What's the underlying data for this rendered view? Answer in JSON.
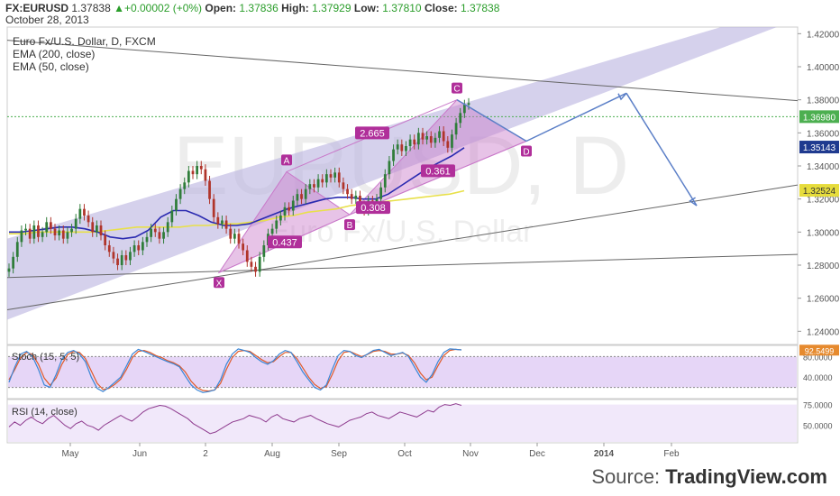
{
  "header": {
    "symbol": "FX:EURUSD",
    "last": "1.37838",
    "change_arrow": "▲",
    "change": "+0.00002 (+0%)",
    "open_label": "Open:",
    "open": "1.37836",
    "high_label": "High:",
    "high": "1.37929",
    "low_label": "Low:",
    "low": "1.37810",
    "close_label": "Close:",
    "close": "1.37838",
    "date": "October 28, 2013"
  },
  "legend": {
    "title": "Euro Fx/U.S. Dollar, D, FXCM",
    "ema200": "EMA (200, close)",
    "ema50": "EMA (50, close)"
  },
  "watermark": {
    "big": "EURUSD, D",
    "small": "Euro Fx/U.S. Dollar"
  },
  "stoch_label": "Stoch (15, 5, 5)",
  "rsi_label": "RSI (14, close)",
  "source": {
    "prefix": "Source: ",
    "brand": "TradingView.com"
  },
  "colors": {
    "candle_up": "#2f7d3a",
    "candle_down": "#b0352b",
    "ema200": "#e8e04a",
    "ema50": "#2a2ab0",
    "channel": "#b9b2e0",
    "pattern": "#c979c9",
    "pattern_label": "#b02f9a",
    "projection": "#5b7fc7",
    "stoch_k": "#3b86d6",
    "stoch_d": "#e05a2a",
    "rsi": "#8e3b8e",
    "price_tag_green": "#4caf50",
    "price_tag_blue": "#1f3a8f",
    "price_tag_orange": "#e68a2e",
    "price_tag_yellow": "#e6dc3c"
  },
  "chart_data": {
    "type": "candlestick",
    "x_labels": [
      "May",
      "Jun",
      "2",
      "Aug",
      "Sep",
      "Oct",
      "Nov",
      "Dec",
      "2014",
      "Feb"
    ],
    "y_ticks": [
      "1.42000",
      "1.40000",
      "1.38000",
      "1.36000",
      "1.34000",
      "1.32000",
      "1.30000",
      "1.28000",
      "1.26000",
      "1.24000"
    ],
    "ylim": [
      1.232,
      1.424
    ],
    "price_tags": [
      {
        "label": "1.36980",
        "value": 1.3698,
        "color": "green"
      },
      {
        "label": "1.35143",
        "value": 1.35143,
        "color": "blue"
      },
      {
        "label": "1.32524",
        "value": 1.32524,
        "color": "yellow"
      }
    ],
    "pattern_points": [
      {
        "name": "X",
        "value": 1.2755
      },
      {
        "name": "A",
        "value": 1.3365
      },
      {
        "name": "B",
        "value": 1.3105
      },
      {
        "name": "C",
        "value": 1.38
      },
      {
        "name": "D",
        "value": 1.355
      }
    ],
    "ratios": [
      "0.437",
      "0.308",
      "2.665",
      "0.361"
    ],
    "closes": [
      1.278,
      1.285,
      1.294,
      1.301,
      1.302,
      1.296,
      1.304,
      1.297,
      1.3,
      1.306,
      1.302,
      1.298,
      1.301,
      1.296,
      1.3,
      1.302,
      1.308,
      1.314,
      1.31,
      1.306,
      1.3,
      1.304,
      1.298,
      1.292,
      1.288,
      1.284,
      1.28,
      1.286,
      1.283,
      1.288,
      1.292,
      1.289,
      1.294,
      1.297,
      1.302,
      1.3,
      1.296,
      1.3,
      1.306,
      1.313,
      1.32,
      1.326,
      1.33,
      1.337,
      1.335,
      1.34,
      1.338,
      1.331,
      1.32,
      1.309,
      1.305,
      1.307,
      1.302,
      1.296,
      1.299,
      1.293,
      1.289,
      1.282,
      1.279,
      1.276,
      1.285,
      1.292,
      1.299,
      1.302,
      1.307,
      1.31,
      1.315,
      1.313,
      1.319,
      1.323,
      1.32,
      1.326,
      1.329,
      1.327,
      1.332,
      1.33,
      1.335,
      1.333,
      1.336,
      1.33,
      1.326,
      1.323,
      1.32,
      1.322,
      1.316,
      1.313,
      1.319,
      1.316,
      1.32,
      1.327,
      1.335,
      1.343,
      1.35,
      1.353,
      1.349,
      1.352,
      1.356,
      1.353,
      1.36,
      1.356,
      1.358,
      1.354,
      1.357,
      1.361,
      1.355,
      1.351,
      1.359,
      1.366,
      1.372,
      1.377,
      1.378
    ],
    "ema50_points": [
      1.3,
      1.3,
      1.301,
      1.302,
      1.303,
      1.303,
      1.302,
      1.3,
      1.297,
      1.296,
      1.297,
      1.301,
      1.309,
      1.313,
      1.313,
      1.31,
      1.306,
      1.304,
      1.304,
      1.305,
      1.308,
      1.311,
      1.314,
      1.316,
      1.318,
      1.32,
      1.321,
      1.321,
      1.32,
      1.32,
      1.323,
      1.328,
      1.333,
      1.338,
      1.342,
      1.346,
      1.351
    ],
    "ema200_points": [
      1.299,
      1.299,
      1.3,
      1.3,
      1.3,
      1.3,
      1.3,
      1.301,
      1.302,
      1.303,
      1.303,
      1.303,
      1.303,
      1.304,
      1.304,
      1.305,
      1.305,
      1.306,
      1.307,
      1.309,
      1.31,
      1.312,
      1.313,
      1.314,
      1.316,
      1.317,
      1.318,
      1.319,
      1.32,
      1.321,
      1.322,
      1.323,
      1.325
    ],
    "stoch": {
      "type": "line",
      "ticks": [
        "80.0000",
        "40.0000"
      ],
      "last": "92.5499",
      "k": [
        30,
        60,
        85,
        90,
        80,
        55,
        25,
        20,
        45,
        75,
        88,
        92,
        85,
        70,
        40,
        18,
        12,
        20,
        30,
        40,
        62,
        85,
        94,
        90,
        85,
        80,
        75,
        70,
        66,
        60,
        42,
        25,
        15,
        10,
        12,
        15,
        35,
        65,
        85,
        95,
        92,
        88,
        78,
        70,
        65,
        72,
        85,
        92,
        88,
        70,
        50,
        35,
        20,
        15,
        25,
        55,
        82,
        92,
        90,
        82,
        78,
        85,
        92,
        94,
        88,
        82,
        85,
        88,
        80,
        60,
        40,
        30,
        45,
        70,
        88,
        95,
        94,
        93
      ],
      "d": [
        35,
        55,
        78,
        88,
        84,
        65,
        38,
        24,
        38,
        65,
        84,
        90,
        88,
        76,
        52,
        28,
        16,
        18,
        26,
        36,
        55,
        78,
        90,
        92,
        88,
        82,
        78,
        72,
        68,
        62,
        50,
        32,
        20,
        14,
        13,
        15,
        28,
        55,
        78,
        90,
        92,
        90,
        82,
        74,
        68,
        70,
        80,
        88,
        88,
        76,
        58,
        40,
        26,
        18,
        22,
        45,
        72,
        88,
        90,
        85,
        80,
        84,
        90,
        92,
        90,
        85,
        85,
        87,
        82,
        68,
        48,
        35,
        40,
        62,
        82,
        92,
        94,
        93
      ]
    },
    "rsi": {
      "type": "line",
      "ticks": [
        "75.0000",
        "50.0000"
      ],
      "values": [
        48,
        54,
        50,
        56,
        60,
        55,
        52,
        58,
        62,
        56,
        50,
        46,
        52,
        55,
        50,
        48,
        44,
        50,
        54,
        58,
        62,
        58,
        55,
        60,
        66,
        70,
        72,
        74,
        73,
        70,
        66,
        62,
        58,
        52,
        48,
        44,
        40,
        42,
        46,
        50,
        54,
        56,
        58,
        62,
        60,
        58,
        54,
        60,
        63,
        58,
        56,
        54,
        58,
        60,
        62,
        58,
        55,
        52,
        50,
        48,
        52,
        56,
        58,
        60,
        64,
        66,
        62,
        60,
        58,
        62,
        66,
        64,
        62,
        60,
        64,
        68,
        66,
        72,
        75,
        74,
        76,
        74
      ]
    }
  }
}
